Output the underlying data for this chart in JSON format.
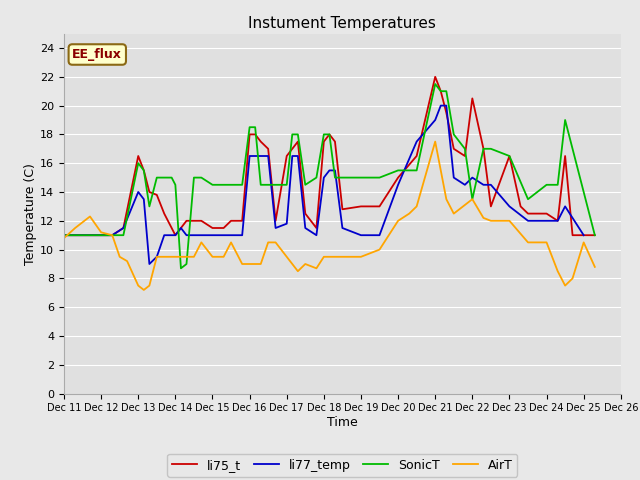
{
  "title": "Instument Temperatures",
  "xlabel": "Time",
  "ylabel": "Temperature (C)",
  "ylim": [
    0,
    25
  ],
  "yticks": [
    0,
    2,
    4,
    6,
    8,
    10,
    12,
    14,
    16,
    18,
    20,
    22,
    24
  ],
  "fig_bg": "#e8e8e8",
  "plot_bg": "#e0e0e0",
  "annotation_text": "EE_flux",
  "annotation_bg": "#ffffcc",
  "annotation_border": "#8b6914",
  "x_labels": [
    "Dec 11",
    "Dec 12",
    "Dec 13",
    "Dec 14",
    "Dec 15",
    "Dec 16",
    "Dec 17",
    "Dec 18",
    "Dec 19",
    "Dec 20",
    "Dec 21",
    "Dec 22",
    "Dec 23",
    "Dec 24",
    "Dec 25",
    "Dec 26"
  ],
  "li75_t": {
    "color": "#cc0000",
    "label": "li75_t",
    "x": [
      11,
      11.5,
      12,
      12.3,
      12.6,
      13.0,
      13.15,
      13.3,
      13.5,
      13.7,
      13.9,
      14.0,
      14.15,
      14.3,
      14.5,
      14.7,
      15.0,
      15.3,
      15.5,
      15.8,
      16.0,
      16.15,
      16.3,
      16.5,
      16.7,
      17.0,
      17.15,
      17.3,
      17.5,
      17.8,
      18.0,
      18.15,
      18.3,
      18.5,
      19.0,
      19.5,
      20.0,
      20.5,
      21.0,
      21.15,
      21.3,
      21.5,
      21.8,
      22.0,
      22.3,
      22.5,
      23.0,
      23.3,
      23.5,
      24.0,
      24.3,
      24.5,
      24.7,
      25.0,
      25.3
    ],
    "y": [
      11.0,
      11.0,
      11.0,
      11.0,
      11.5,
      16.5,
      15.5,
      14.0,
      13.8,
      12.5,
      11.5,
      11.0,
      11.5,
      12.0,
      12.0,
      12.0,
      11.5,
      11.5,
      12.0,
      12.0,
      18.0,
      18.0,
      17.5,
      17.0,
      12.0,
      16.5,
      17.0,
      17.5,
      12.5,
      11.5,
      17.5,
      18.0,
      17.5,
      12.8,
      13.0,
      13.0,
      15.0,
      16.5,
      22.0,
      21.0,
      19.5,
      17.0,
      16.5,
      20.5,
      17.0,
      13.0,
      16.5,
      13.0,
      12.5,
      12.5,
      12.0,
      16.5,
      11.0,
      11.0,
      11.0
    ]
  },
  "li77_temp": {
    "color": "#0000cc",
    "label": "li77_temp",
    "x": [
      11,
      11.5,
      12,
      12.3,
      12.6,
      13.0,
      13.15,
      13.3,
      13.5,
      13.7,
      13.9,
      14.0,
      14.15,
      14.3,
      14.5,
      14.7,
      15.0,
      15.3,
      15.5,
      15.8,
      16.0,
      16.15,
      16.3,
      16.5,
      16.7,
      17.0,
      17.15,
      17.3,
      17.5,
      17.8,
      18.0,
      18.15,
      18.3,
      18.5,
      19.0,
      19.5,
      20.0,
      20.5,
      21.0,
      21.15,
      21.3,
      21.5,
      21.8,
      22.0,
      22.3,
      22.5,
      23.0,
      23.5,
      24.0,
      24.3,
      24.5,
      25.0
    ],
    "y": [
      11.0,
      11.0,
      11.0,
      11.0,
      11.5,
      14.0,
      13.5,
      9.0,
      9.5,
      11.0,
      11.0,
      11.0,
      11.5,
      11.0,
      11.0,
      11.0,
      11.0,
      11.0,
      11.0,
      11.0,
      16.5,
      16.5,
      16.5,
      16.5,
      11.5,
      11.8,
      16.5,
      16.5,
      11.5,
      11.0,
      15.0,
      15.5,
      15.5,
      11.5,
      11.0,
      11.0,
      14.5,
      17.5,
      19.0,
      20.0,
      20.0,
      15.0,
      14.5,
      15.0,
      14.5,
      14.5,
      13.0,
      12.0,
      12.0,
      12.0,
      13.0,
      11.0
    ]
  },
  "SonicT": {
    "color": "#00bb00",
    "label": "SonicT",
    "x": [
      11,
      11.5,
      12,
      12.3,
      12.6,
      13.0,
      13.15,
      13.3,
      13.5,
      13.7,
      13.9,
      14.0,
      14.15,
      14.3,
      14.5,
      14.7,
      15.0,
      15.3,
      15.5,
      15.8,
      16.0,
      16.15,
      16.3,
      16.5,
      16.7,
      17.0,
      17.15,
      17.3,
      17.5,
      17.8,
      18.0,
      18.15,
      18.3,
      18.5,
      19.0,
      19.5,
      20.0,
      20.5,
      21.0,
      21.15,
      21.3,
      21.5,
      21.8,
      22.0,
      22.3,
      22.5,
      23.0,
      23.5,
      24.0,
      24.3,
      24.5,
      25.0,
      25.3
    ],
    "y": [
      11.0,
      11.0,
      11.0,
      11.0,
      11.0,
      16.0,
      15.5,
      13.0,
      15.0,
      15.0,
      15.0,
      14.5,
      8.7,
      9.0,
      15.0,
      15.0,
      14.5,
      14.5,
      14.5,
      14.5,
      18.5,
      18.5,
      14.5,
      14.5,
      14.5,
      14.5,
      18.0,
      18.0,
      14.5,
      15.0,
      18.0,
      18.0,
      15.0,
      15.0,
      15.0,
      15.0,
      15.5,
      15.5,
      21.5,
      21.0,
      21.0,
      18.0,
      17.0,
      13.5,
      17.0,
      17.0,
      16.5,
      13.5,
      14.5,
      14.5,
      19.0,
      14.0,
      11.0
    ]
  },
  "AirT": {
    "color": "#ffa500",
    "label": "AirT",
    "x": [
      11,
      11.3,
      11.7,
      12.0,
      12.3,
      12.5,
      12.7,
      13.0,
      13.15,
      13.3,
      13.5,
      13.7,
      14.0,
      14.3,
      14.5,
      14.7,
      15.0,
      15.3,
      15.5,
      15.8,
      16.0,
      16.3,
      16.5,
      16.7,
      17.0,
      17.3,
      17.5,
      17.8,
      18.0,
      18.3,
      18.5,
      19.0,
      19.3,
      19.5,
      20.0,
      20.3,
      20.5,
      21.0,
      21.3,
      21.5,
      22.0,
      22.3,
      22.5,
      23.0,
      23.5,
      24.0,
      24.3,
      24.5,
      24.7,
      25.0,
      25.3
    ],
    "y": [
      10.8,
      11.5,
      12.3,
      11.2,
      11.0,
      9.5,
      9.2,
      7.5,
      7.2,
      7.5,
      9.5,
      9.5,
      9.5,
      9.5,
      9.5,
      10.5,
      9.5,
      9.5,
      10.5,
      9.0,
      9.0,
      9.0,
      10.5,
      10.5,
      9.5,
      8.5,
      9.0,
      8.7,
      9.5,
      9.5,
      9.5,
      9.5,
      9.8,
      10.0,
      12.0,
      12.5,
      13.0,
      17.5,
      13.5,
      12.5,
      13.5,
      12.2,
      12.0,
      12.0,
      10.5,
      10.5,
      8.5,
      7.5,
      8.0,
      10.5,
      8.8
    ]
  }
}
